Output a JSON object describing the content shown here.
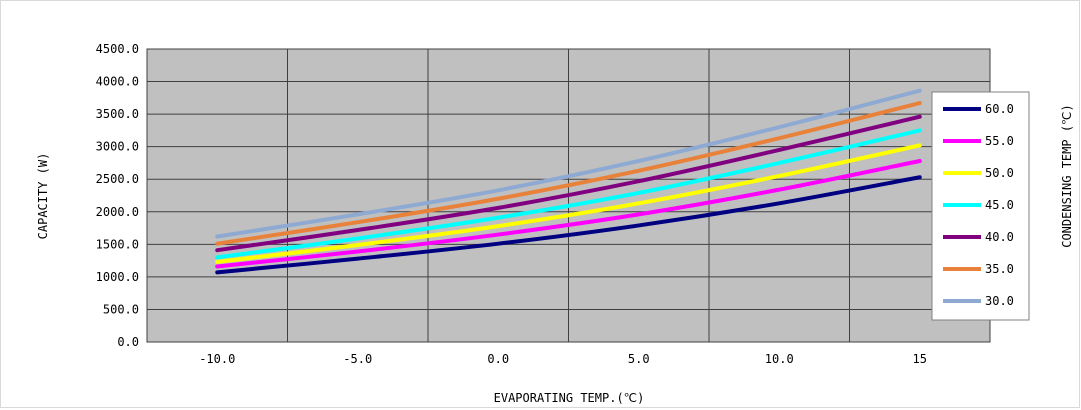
{
  "chart_data": {
    "type": "line",
    "title": "",
    "xlabel": "EVAPORATING TEMP.(℃)",
    "ylabel": "CAPACITY (W)",
    "legend_title": "CONDENSING TEMP (℃)",
    "legend_position": "right",
    "grid": true,
    "plot_background": "#c0c0c0",
    "xlim": [
      -12.5,
      17.5
    ],
    "ylim": [
      0,
      4500
    ],
    "x_ticks": [
      {
        "value": -10,
        "label": "-10.0"
      },
      {
        "value": -5,
        "label": "-5.0"
      },
      {
        "value": 0,
        "label": "0.0"
      },
      {
        "value": 5,
        "label": "5.0"
      },
      {
        "value": 10,
        "label": "10.0"
      },
      {
        "value": 15,
        "label": "15"
      }
    ],
    "y_ticks": [
      {
        "value": 0,
        "label": "0.0"
      },
      {
        "value": 500,
        "label": "500.0"
      },
      {
        "value": 1000,
        "label": "1000.0"
      },
      {
        "value": 1500,
        "label": "1500.0"
      },
      {
        "value": 2000,
        "label": "2000.0"
      },
      {
        "value": 2500,
        "label": "2500.0"
      },
      {
        "value": 3000,
        "label": "3000.0"
      },
      {
        "value": 3500,
        "label": "3500.0"
      },
      {
        "value": 4000,
        "label": "4000.0"
      },
      {
        "value": 4500,
        "label": "4500.0"
      }
    ],
    "x": [
      -10,
      -5,
      0,
      5,
      10,
      15
    ],
    "series": [
      {
        "name": "60.0",
        "color": "#000080",
        "values": [
          1070,
          1280,
          1510,
          1790,
          2130,
          2530
        ]
      },
      {
        "name": "55.0",
        "color": "#ff00ff",
        "values": [
          1160,
          1390,
          1650,
          1960,
          2340,
          2780
        ]
      },
      {
        "name": "50.0",
        "color": "#ffff00",
        "values": [
          1230,
          1490,
          1780,
          2130,
          2550,
          3020
        ]
      },
      {
        "name": "45.0",
        "color": "#00ffff",
        "values": [
          1300,
          1590,
          1910,
          2290,
          2750,
          3250
        ]
      },
      {
        "name": "40.0",
        "color": "#800080",
        "values": [
          1410,
          1720,
          2060,
          2470,
          2950,
          3460
        ]
      },
      {
        "name": "35.0",
        "color": "#e8823a",
        "values": [
          1510,
          1840,
          2200,
          2630,
          3130,
          3670
        ]
      },
      {
        "name": "30.0",
        "color": "#8faad2",
        "values": [
          1620,
          1960,
          2330,
          2780,
          3300,
          3860
        ]
      }
    ]
  }
}
